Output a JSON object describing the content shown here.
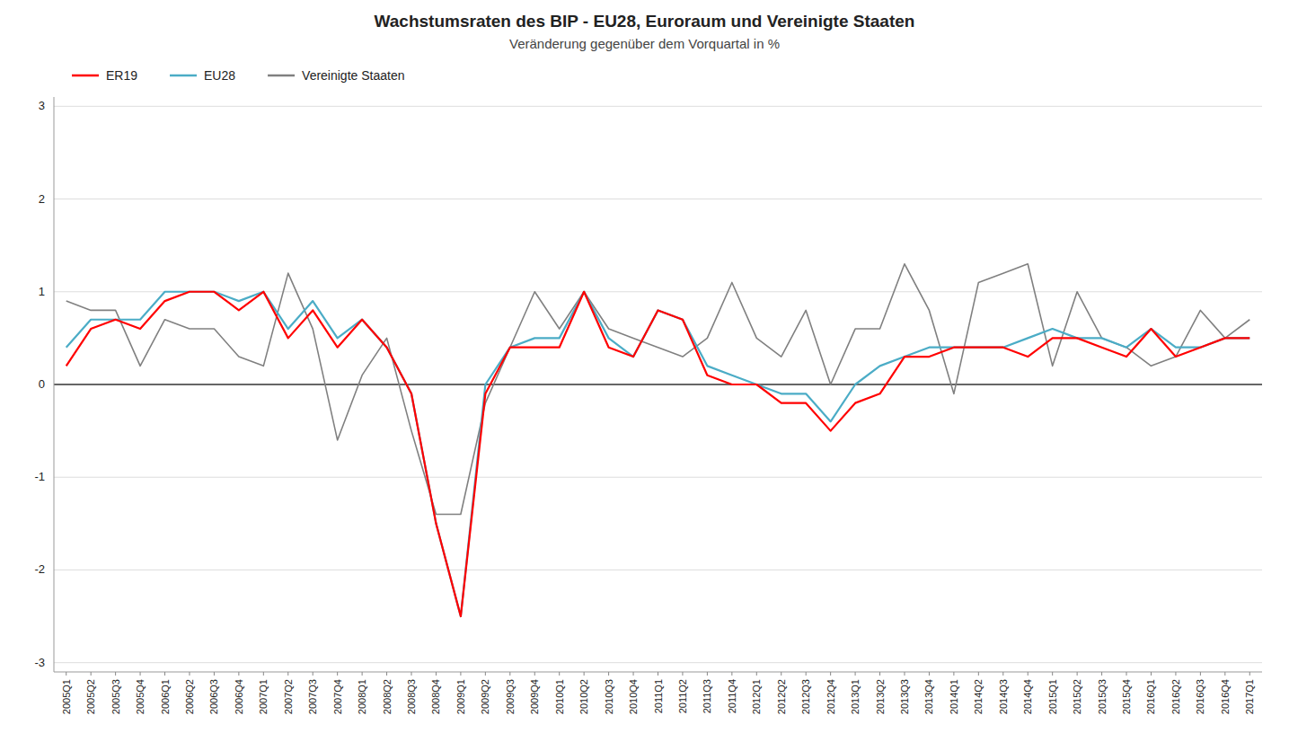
{
  "chart_data": {
    "type": "line",
    "title": "Wachstumsraten des BIP - EU28, Euroraum und Vereinigte Staaten",
    "subtitle": "Veränderung gegenüber dem Vorquartal in %",
    "categories": [
      "2005Q1",
      "2005Q2",
      "2005Q3",
      "2005Q4",
      "2006Q1",
      "2006Q2",
      "2006Q3",
      "2006Q4",
      "2007Q1",
      "2007Q2",
      "2007Q3",
      "2007Q4",
      "2008Q1",
      "2008Q2",
      "2008Q3",
      "2008Q4",
      "2009Q1",
      "2009Q2",
      "2009Q3",
      "2009Q4",
      "2010Q1",
      "2010Q2",
      "2010Q3",
      "2010Q4",
      "2011Q1",
      "2011Q2",
      "2011Q3",
      "2011Q4",
      "2012Q1",
      "2012Q2",
      "2012Q3",
      "2012Q4",
      "2013Q1",
      "2013Q2",
      "2013Q3",
      "2013Q4",
      "2014Q1",
      "2014Q2",
      "2014Q3",
      "2014Q4",
      "2015Q1",
      "2015Q2",
      "2015Q3",
      "2015Q4",
      "2016Q1",
      "2016Q2",
      "2016Q3",
      "2016Q4",
      "2017Q1"
    ],
    "series": [
      {
        "name": "ER19",
        "color": "#FF0000",
        "values": [
          0.2,
          0.6,
          0.7,
          0.6,
          0.9,
          1.0,
          1.0,
          0.8,
          1.0,
          0.5,
          0.8,
          0.4,
          0.7,
          0.4,
          -0.1,
          -1.5,
          -2.5,
          -0.1,
          0.4,
          0.4,
          0.4,
          1.0,
          0.4,
          0.3,
          0.8,
          0.7,
          0.1,
          0.0,
          0.0,
          -0.2,
          -0.2,
          -0.5,
          -0.2,
          -0.1,
          0.3,
          0.3,
          0.4,
          0.4,
          0.4,
          0.3,
          0.5,
          0.5,
          0.4,
          0.3,
          0.6,
          0.3,
          0.4,
          0.5,
          0.5
        ]
      },
      {
        "name": "EU28",
        "color": "#4BACC6",
        "values": [
          0.4,
          0.7,
          0.7,
          0.7,
          1.0,
          1.0,
          1.0,
          0.9,
          1.0,
          0.6,
          0.9,
          0.5,
          0.7,
          0.4,
          -0.1,
          -1.5,
          -2.5,
          0.0,
          0.4,
          0.5,
          0.5,
          1.0,
          0.5,
          0.3,
          0.8,
          0.7,
          0.2,
          0.1,
          0.0,
          -0.1,
          -0.1,
          -0.4,
          0.0,
          0.2,
          0.3,
          0.4,
          0.4,
          0.4,
          0.4,
          0.5,
          0.6,
          0.5,
          0.5,
          0.4,
          0.6,
          0.4,
          0.4,
          0.5,
          0.5
        ]
      },
      {
        "name": "Vereinigte Staaten",
        "color": "#808080",
        "values": [
          0.9,
          0.8,
          0.8,
          0.2,
          0.7,
          0.6,
          0.6,
          0.3,
          0.2,
          1.2,
          0.6,
          -0.6,
          0.1,
          0.5,
          -0.5,
          -1.4,
          -1.4,
          -0.2,
          0.4,
          1.0,
          0.6,
          1.0,
          0.6,
          0.5,
          0.4,
          0.3,
          0.5,
          1.1,
          0.5,
          0.3,
          0.8,
          0.0,
          0.6,
          0.6,
          1.3,
          0.8,
          -0.1,
          1.1,
          1.2,
          1.3,
          0.2,
          1.0,
          0.5,
          0.4,
          0.2,
          0.3,
          0.8,
          0.5,
          0.7
        ]
      }
    ],
    "ylim": [
      -3.1,
      3.1
    ],
    "yticks": [
      -3,
      -2,
      -1,
      0,
      1,
      2,
      3
    ],
    "grid": true,
    "legend": "top"
  }
}
